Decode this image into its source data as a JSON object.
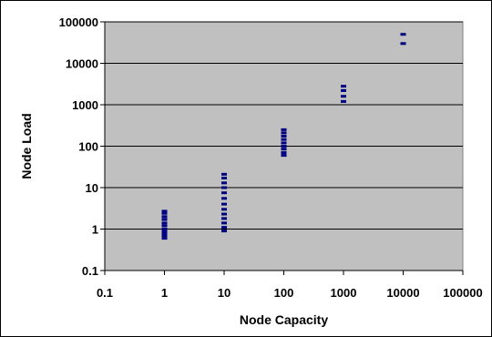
{
  "chart_data": {
    "type": "scatter",
    "title": "",
    "xlabel": "Node Capacity",
    "ylabel": "Node Load",
    "x_scale": "log",
    "y_scale": "log",
    "xlim": [
      0.1,
      100000
    ],
    "ylim": [
      0.1,
      100000
    ],
    "x_ticks": [
      "0.1",
      "1",
      "10",
      "100",
      "1000",
      "10000",
      "100000"
    ],
    "y_ticks": [
      "0.1",
      "1",
      "10",
      "100",
      "1000",
      "10000",
      "100000"
    ],
    "grid": "horizontal",
    "plot_background": "#c0c0c0",
    "marker_color": "#000080",
    "marker": "dash",
    "series": [
      {
        "points": [
          {
            "x": 1,
            "y": 0.6
          },
          {
            "x": 1,
            "y": 0.7
          },
          {
            "x": 1,
            "y": 0.8
          },
          {
            "x": 1,
            "y": 0.9
          },
          {
            "x": 1,
            "y": 1.0
          },
          {
            "x": 1,
            "y": 1.2
          },
          {
            "x": 1,
            "y": 1.4
          },
          {
            "x": 1,
            "y": 1.7
          },
          {
            "x": 1,
            "y": 2.0
          },
          {
            "x": 1,
            "y": 2.4
          },
          {
            "x": 1,
            "y": 2.7
          },
          {
            "x": 10,
            "y": 0.9
          },
          {
            "x": 10,
            "y": 1.1
          },
          {
            "x": 10,
            "y": 1.4
          },
          {
            "x": 10,
            "y": 1.8
          },
          {
            "x": 10,
            "y": 2.3
          },
          {
            "x": 10,
            "y": 3.0
          },
          {
            "x": 10,
            "y": 4.0
          },
          {
            "x": 10,
            "y": 5.5
          },
          {
            "x": 10,
            "y": 7.5
          },
          {
            "x": 10,
            "y": 10
          },
          {
            "x": 10,
            "y": 13
          },
          {
            "x": 10,
            "y": 17
          },
          {
            "x": 10,
            "y": 21
          },
          {
            "x": 100,
            "y": 60
          },
          {
            "x": 100,
            "y": 70
          },
          {
            "x": 100,
            "y": 85
          },
          {
            "x": 100,
            "y": 100
          },
          {
            "x": 100,
            "y": 120
          },
          {
            "x": 100,
            "y": 145
          },
          {
            "x": 100,
            "y": 175
          },
          {
            "x": 100,
            "y": 210
          },
          {
            "x": 100,
            "y": 250
          },
          {
            "x": 1000,
            "y": 1200
          },
          {
            "x": 1000,
            "y": 1600
          },
          {
            "x": 1000,
            "y": 2200
          },
          {
            "x": 1000,
            "y": 2800
          },
          {
            "x": 10000,
            "y": 30000
          },
          {
            "x": 10000,
            "y": 50000
          }
        ]
      }
    ]
  }
}
